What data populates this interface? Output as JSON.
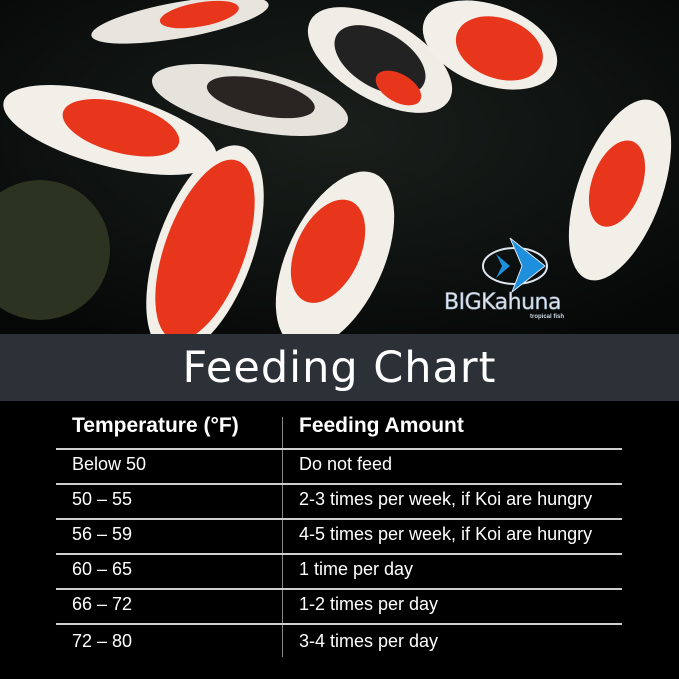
{
  "logo": {
    "brand": "BIGKahuna",
    "tagline": "tropical fish"
  },
  "title": "Feeding Chart",
  "table": {
    "headers": [
      "Temperature (°F)",
      "Feeding Amount"
    ],
    "rows": [
      [
        "Below 50",
        "Do not feed"
      ],
      [
        "50 – 55",
        "2-3 times per week, if Koi are hungry"
      ],
      [
        "56 – 59",
        "4-5 times per week, if Koi are hungry"
      ],
      [
        "60 – 65",
        "1 time per day"
      ],
      [
        "66 – 72",
        "1-2 times per day"
      ],
      [
        "72 – 80",
        "3-4 times per day"
      ]
    ]
  },
  "colors": {
    "band": "#2c3138",
    "koi_red": "#e8361c",
    "koi_white": "#f2efe9",
    "logo_blue": "#1d8fdc"
  }
}
